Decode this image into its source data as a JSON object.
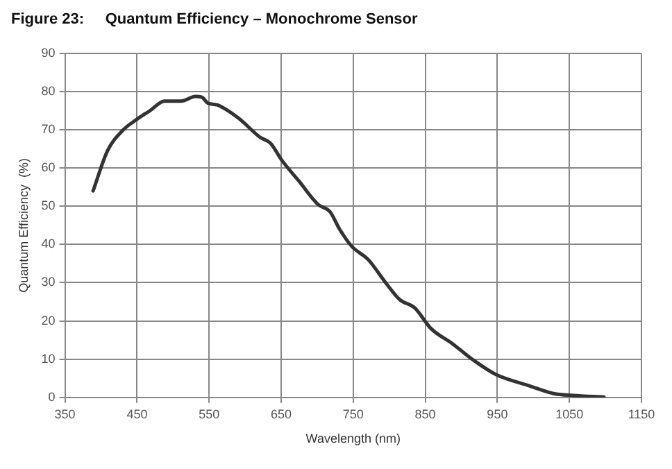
{
  "chart_data": {
    "type": "line",
    "title": "Figure 23:     Quantum Efficiency – Monochrome Sensor",
    "xlabel": "Wavelength (nm)",
    "ylabel": "Quantum Efficiency  (%)",
    "series": [
      {
        "color": "#333333",
        "x": [
          389,
          409,
          431,
          448,
          468,
          488,
          511,
          531,
          540,
          548,
          561,
          591,
          621,
          635,
          651,
          675,
          701,
          718,
          731,
          748,
          771,
          795,
          815,
          835,
          858,
          888,
          915,
          948,
          995,
          1028,
          1055,
          1098
        ],
        "values": [
          54,
          64.5,
          70,
          72.5,
          75,
          77.5,
          77.5,
          78.7,
          78.5,
          77,
          76.5,
          73,
          68,
          66.5,
          62,
          56.5,
          50.5,
          48.5,
          44,
          39.5,
          36,
          30,
          25.5,
          23.5,
          18,
          14,
          10,
          6,
          3,
          1,
          0.5,
          0.1
        ]
      }
    ],
    "xlim": [
      350,
      1150
    ],
    "xticks": [
      350,
      450,
      550,
      650,
      750,
      850,
      950,
      1050,
      1150
    ],
    "ylim": [
      0,
      90
    ],
    "yticks": [
      0,
      10,
      20,
      30,
      40,
      50,
      60,
      70,
      80,
      90
    ],
    "grid": true,
    "legend": false,
    "marker": "none",
    "line_style": "solid"
  }
}
